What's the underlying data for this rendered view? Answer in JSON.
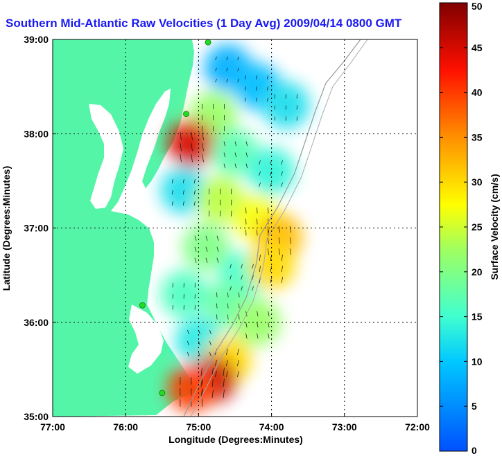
{
  "chart_data": {
    "type": "heatmap",
    "title": "Southern Mid-Atlantic Raw Velocities (1 Day Avg) 2009/04/14 0800 GMT",
    "xlabel": "Longitude (Degrees:Minutes)",
    "ylabel": "Latitude (Degrees:Minutes)",
    "xlim": [
      -77.0,
      -72.0
    ],
    "ylim": [
      35.0,
      39.0
    ],
    "x_ticks": [
      -77,
      -76,
      -75,
      -74,
      -73,
      -72
    ],
    "x_tick_labels": [
      "77:00",
      "76:00",
      "75:00",
      "74:00",
      "73:00",
      "72:00"
    ],
    "y_ticks": [
      35,
      36,
      37,
      38,
      39
    ],
    "y_tick_labels": [
      "35:00",
      "36:00",
      "37:00",
      "38:00",
      "39:00"
    ],
    "grid": true,
    "colorbar": {
      "label": "Surface Velocity (cm/s)",
      "range": [
        0,
        50
      ],
      "ticks": [
        0,
        5,
        10,
        15,
        20,
        25,
        30,
        35,
        40,
        45,
        50
      ],
      "tick_labels": [
        "0",
        "5",
        "10",
        "15",
        "20",
        "25",
        "30",
        "35",
        "40",
        "45",
        "50"
      ],
      "colormap": "jet"
    },
    "colors": {
      "land": "#55f5a8",
      "water": "#ffffff",
      "title": "#1a1af0",
      "stations": "#22dd22"
    },
    "stations": [
      {
        "lon": -74.87,
        "lat": 38.97
      },
      {
        "lon": -75.17,
        "lat": 38.21
      },
      {
        "lon": -75.77,
        "lat": 36.18
      },
      {
        "lon": -75.5,
        "lat": 35.25
      }
    ],
    "speed_field": [
      {
        "lon": -74.6,
        "lat": 38.7,
        "speed": 8
      },
      {
        "lon": -74.2,
        "lat": 38.5,
        "speed": 9
      },
      {
        "lon": -73.8,
        "lat": 38.3,
        "speed": 12
      },
      {
        "lon": -74.8,
        "lat": 38.2,
        "speed": 22
      },
      {
        "lon": -75.1,
        "lat": 37.9,
        "speed": 45
      },
      {
        "lon": -74.5,
        "lat": 37.8,
        "speed": 17
      },
      {
        "lon": -74.0,
        "lat": 37.6,
        "speed": 14
      },
      {
        "lon": -75.2,
        "lat": 37.4,
        "speed": 12
      },
      {
        "lon": -74.7,
        "lat": 37.3,
        "speed": 24
      },
      {
        "lon": -74.2,
        "lat": 37.1,
        "speed": 27
      },
      {
        "lon": -73.9,
        "lat": 36.9,
        "speed": 32
      },
      {
        "lon": -74.9,
        "lat": 36.8,
        "speed": 20
      },
      {
        "lon": -74.4,
        "lat": 36.5,
        "speed": 15
      },
      {
        "lon": -74.0,
        "lat": 36.6,
        "speed": 30
      },
      {
        "lon": -75.2,
        "lat": 36.3,
        "speed": 16
      },
      {
        "lon": -74.6,
        "lat": 36.2,
        "speed": 18
      },
      {
        "lon": -74.2,
        "lat": 36.0,
        "speed": 22
      },
      {
        "lon": -75.0,
        "lat": 35.8,
        "speed": 13
      },
      {
        "lon": -74.6,
        "lat": 35.6,
        "speed": 30
      },
      {
        "lon": -74.8,
        "lat": 35.4,
        "speed": 46
      },
      {
        "lon": -75.1,
        "lat": 35.3,
        "speed": 40
      }
    ]
  }
}
